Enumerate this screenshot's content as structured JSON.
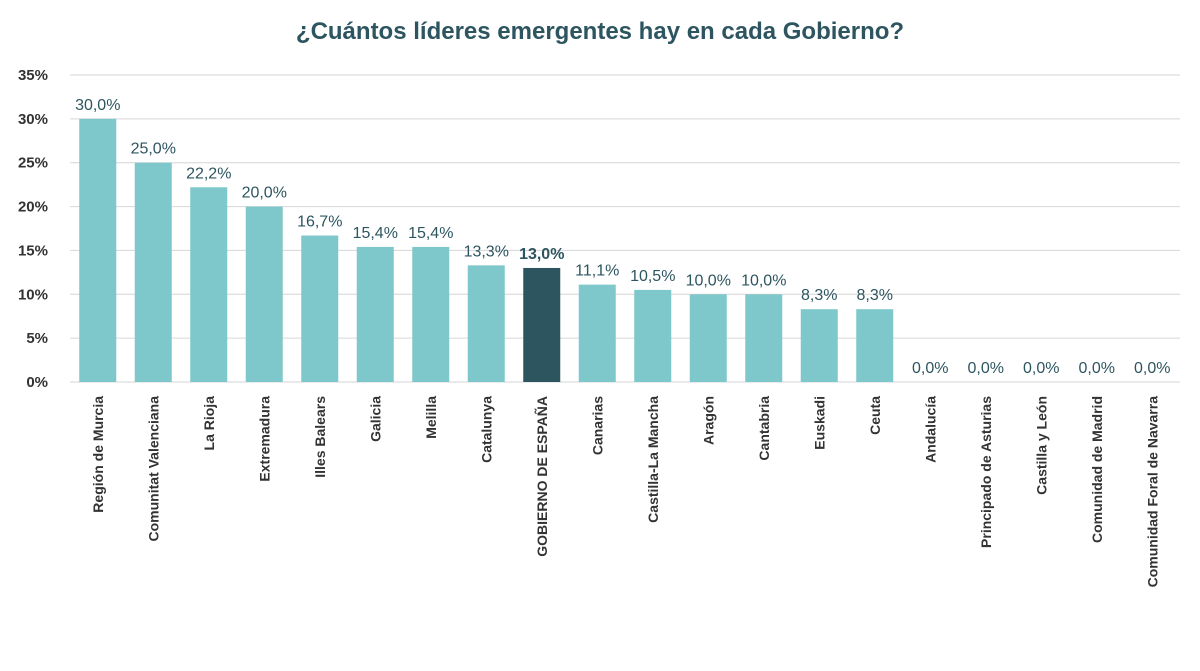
{
  "chart_data": {
    "type": "bar",
    "title": "¿Cuántos líderes emergentes hay en cada Gobierno?",
    "categories": [
      "Región de Murcia",
      "Comunitat Valenciana",
      "La Rioja",
      "Extremadura",
      "Illes Balears",
      "Galicia",
      "Melilla",
      "Catalunya",
      "GOBIERNO DE ESPAÑA",
      "Canarias",
      "Castilla-La Mancha",
      "Aragón",
      "Cantabria",
      "Euskadi",
      "Ceuta",
      "Andalucía",
      "Principado de Asturias",
      "Castilla y León",
      "Comunidad de Madrid",
      "Comunidad Foral de Navarra"
    ],
    "values": [
      30.0,
      25.0,
      22.2,
      20.0,
      16.7,
      15.4,
      15.4,
      13.3,
      13.0,
      11.1,
      10.5,
      10.0,
      10.0,
      8.3,
      8.3,
      0.0,
      0.0,
      0.0,
      0.0,
      0.0
    ],
    "value_labels": [
      "30,0%",
      "25,0%",
      "22,2%",
      "20,0%",
      "16,7%",
      "15,4%",
      "15,4%",
      "13,3%",
      "13,0%",
      "11,1%",
      "10,5%",
      "10,0%",
      "10,0%",
      "8,3%",
      "8,3%",
      "0,0%",
      "0,0%",
      "0,0%",
      "0,0%",
      "0,0%"
    ],
    "highlight_index": 8,
    "ylim": [
      0,
      35
    ],
    "yticks": [
      0,
      5,
      10,
      15,
      20,
      25,
      30,
      35
    ],
    "ytick_labels": [
      "0%",
      "5%",
      "10%",
      "15%",
      "20%",
      "25%",
      "30%",
      "35%"
    ],
    "grid": true,
    "colors": {
      "bar": "#7ec8cb",
      "highlight": "#2d5560",
      "label": "#2d5560"
    },
    "xlabel": "",
    "ylabel": ""
  }
}
